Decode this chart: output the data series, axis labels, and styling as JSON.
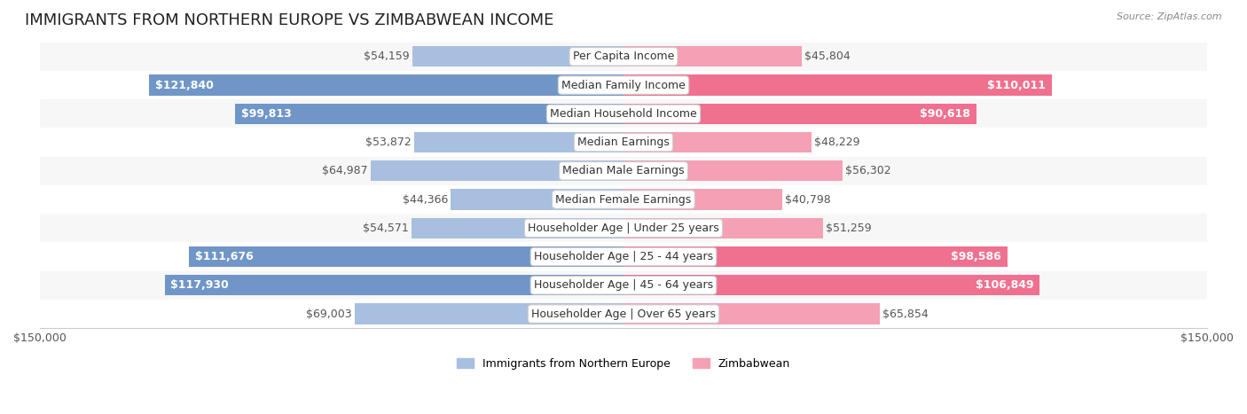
{
  "title": "IMMIGRANTS FROM NORTHERN EUROPE VS ZIMBABWEAN INCOME",
  "source": "Source: ZipAtlas.com",
  "categories": [
    "Per Capita Income",
    "Median Family Income",
    "Median Household Income",
    "Median Earnings",
    "Median Male Earnings",
    "Median Female Earnings",
    "Householder Age | Under 25 years",
    "Householder Age | 25 - 44 years",
    "Householder Age | 45 - 64 years",
    "Householder Age | Over 65 years"
  ],
  "left_values": [
    54159,
    121840,
    99813,
    53872,
    64987,
    44366,
    54571,
    111676,
    117930,
    69003
  ],
  "right_values": [
    45804,
    110011,
    90618,
    48229,
    56302,
    40798,
    51259,
    98586,
    106849,
    65854
  ],
  "left_labels": [
    "$54,159",
    "$121,840",
    "$99,813",
    "$53,872",
    "$64,987",
    "$44,366",
    "$54,571",
    "$111,676",
    "$117,930",
    "$69,003"
  ],
  "right_labels": [
    "$45,804",
    "$110,011",
    "$90,618",
    "$48,229",
    "$56,302",
    "$40,798",
    "$51,259",
    "$98,586",
    "$106,849",
    "$65,854"
  ],
  "left_color": "#a8bfdf",
  "right_color": "#f4a0b5",
  "left_color_large": "#7096c8",
  "right_color_large": "#f07090",
  "bar_bg_color": "#f0f0f0",
  "row_bg_color": "#f7f7f7",
  "row_alt_bg_color": "#ffffff",
  "legend_left": "Immigrants from Northern Europe",
  "legend_right": "Zimbabwean",
  "max_value": 150000,
  "title_fontsize": 13,
  "label_fontsize": 9,
  "category_fontsize": 9
}
